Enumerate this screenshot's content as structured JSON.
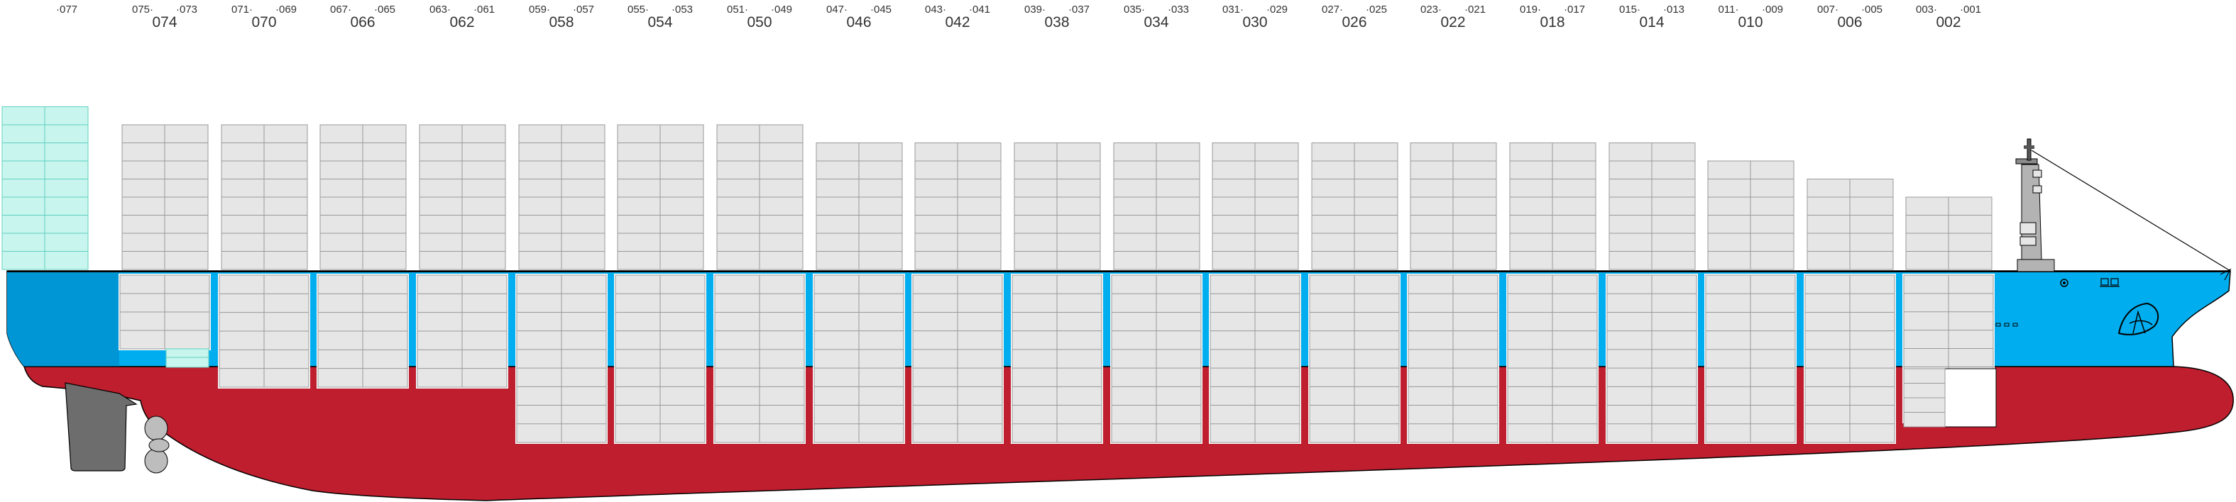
{
  "diagram": {
    "bays": [
      {
        "main": "",
        "left": "",
        "right": "·077",
        "has_deck": true,
        "has_hold": false,
        "reefer": true
      },
      {
        "main": "074",
        "left": "075·",
        "right": "·073",
        "has_deck": true,
        "has_hold": true,
        "reefer": false
      },
      {
        "main": "070",
        "left": "071·",
        "right": "·069",
        "has_deck": true,
        "has_hold": true,
        "reefer": false
      },
      {
        "main": "066",
        "left": "067·",
        "right": "·065",
        "has_deck": true,
        "has_hold": true,
        "reefer": false
      },
      {
        "main": "062",
        "left": "063·",
        "right": "·061",
        "has_deck": true,
        "has_hold": true,
        "reefer": false
      },
      {
        "main": "058",
        "left": "059·",
        "right": "·057",
        "has_deck": true,
        "has_hold": true,
        "reefer": false
      },
      {
        "main": "054",
        "left": "055·",
        "right": "·053",
        "has_deck": true,
        "has_hold": true,
        "reefer": false
      },
      {
        "main": "050",
        "left": "051·",
        "right": "·049",
        "has_deck": true,
        "has_hold": true,
        "reefer": false
      },
      {
        "main": "046",
        "left": "047·",
        "right": "·045",
        "has_deck": true,
        "has_hold": true,
        "reefer": false
      },
      {
        "main": "042",
        "left": "043·",
        "right": "·041",
        "has_deck": true,
        "has_hold": true,
        "reefer": false
      },
      {
        "main": "038",
        "left": "039·",
        "right": "·037",
        "has_deck": true,
        "has_hold": true,
        "reefer": false
      },
      {
        "main": "034",
        "left": "035·",
        "right": "·033",
        "has_deck": true,
        "has_hold": true,
        "reefer": false
      },
      {
        "main": "030",
        "left": "031·",
        "right": "·029",
        "has_deck": true,
        "has_hold": true,
        "reefer": false
      },
      {
        "main": "026",
        "left": "027·",
        "right": "·025",
        "has_deck": true,
        "has_hold": true,
        "reefer": false
      },
      {
        "main": "022",
        "left": "023·",
        "right": "·021",
        "has_deck": true,
        "has_hold": true,
        "reefer": false
      },
      {
        "main": "018",
        "left": "019·",
        "right": "·017",
        "has_deck": true,
        "has_hold": true,
        "reefer": false
      },
      {
        "main": "014",
        "left": "015·",
        "right": "·013",
        "has_deck": true,
        "has_hold": true,
        "reefer": false
      },
      {
        "main": "010",
        "left": "011·",
        "right": "·009",
        "has_deck": true,
        "has_hold": true,
        "reefer": false
      },
      {
        "main": "006",
        "left": "007·",
        "right": "·005",
        "has_deck": true,
        "has_hold": true,
        "reefer": false
      },
      {
        "main": "002",
        "left": "003·",
        "right": "·001",
        "has_deck": true,
        "has_hold": true,
        "reefer": false
      }
    ],
    "colors": {
      "hull_upper": "#00aeef",
      "hull_upper_aft": "#0096d6",
      "hull_lower": "#be1e2d",
      "container_fill": "#e6e6e6",
      "container_stroke": "#999999",
      "reefer_fill": "#c8f5ee",
      "reefer_stroke": "#5fd0c0",
      "rudder": "#6d6d6d",
      "propeller": "#bdbdbd",
      "superstructure": "#b3b3b3"
    },
    "icons": [
      "rudder-icon",
      "propeller-icon",
      "bridge-mast-icon",
      "forecastle-line-icon",
      "company-logo-icon"
    ]
  }
}
